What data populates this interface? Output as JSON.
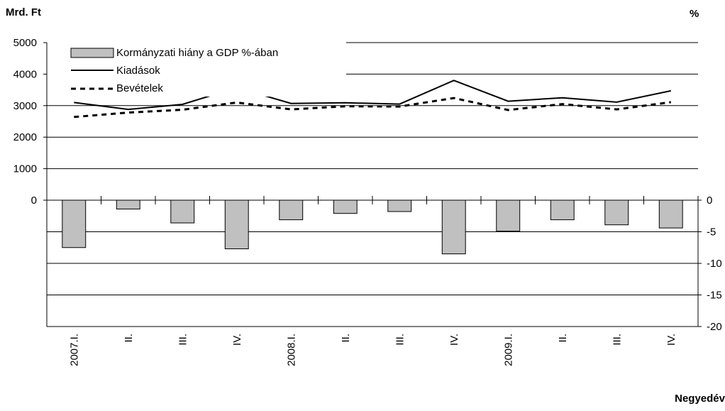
{
  "chart_data": {
    "type": "bar",
    "left_axis_label": "Mrd. Ft",
    "right_axis_label": "%",
    "xlabel": "Negyedév",
    "categories": [
      "2007.I.",
      "II.",
      "III.",
      "IV.",
      "2008.I.",
      "II.",
      "III.",
      "IV.",
      "2009.I.",
      "II.",
      "III.",
      "IV."
    ],
    "left_ticks": [
      "5000",
      "4000",
      "3000",
      "2000",
      "1000",
      "0"
    ],
    "right_ticks": [
      "0",
      "-5",
      "-10",
      "-15",
      "-20"
    ],
    "left_ylim": [
      0,
      5000
    ],
    "right_ylim": [
      -20,
      0
    ],
    "grid": true,
    "legend_position": "top-left",
    "series": [
      {
        "name": "Kormányzati hiány a GDP %-ában",
        "kind": "bar",
        "axis": "right",
        "color": "#c0c0c0",
        "values": [
          -7.5,
          -1.4,
          -3.6,
          -7.7,
          -3.1,
          -2.1,
          -1.8,
          -8.5,
          -4.9,
          -3.1,
          -3.9,
          -4.4
        ]
      },
      {
        "name": "Kiadások",
        "kind": "line",
        "axis": "left",
        "style": "solid",
        "color": "#000000",
        "values": [
          3100,
          2880,
          3040,
          3570,
          3070,
          3090,
          3050,
          3800,
          3140,
          3250,
          3110,
          3470
        ]
      },
      {
        "name": "Bevételek",
        "kind": "line",
        "axis": "left",
        "style": "dashed",
        "color": "#000000",
        "values": [
          2640,
          2780,
          2870,
          3100,
          2880,
          2980,
          2970,
          3240,
          2860,
          3050,
          2880,
          3110
        ]
      }
    ]
  }
}
